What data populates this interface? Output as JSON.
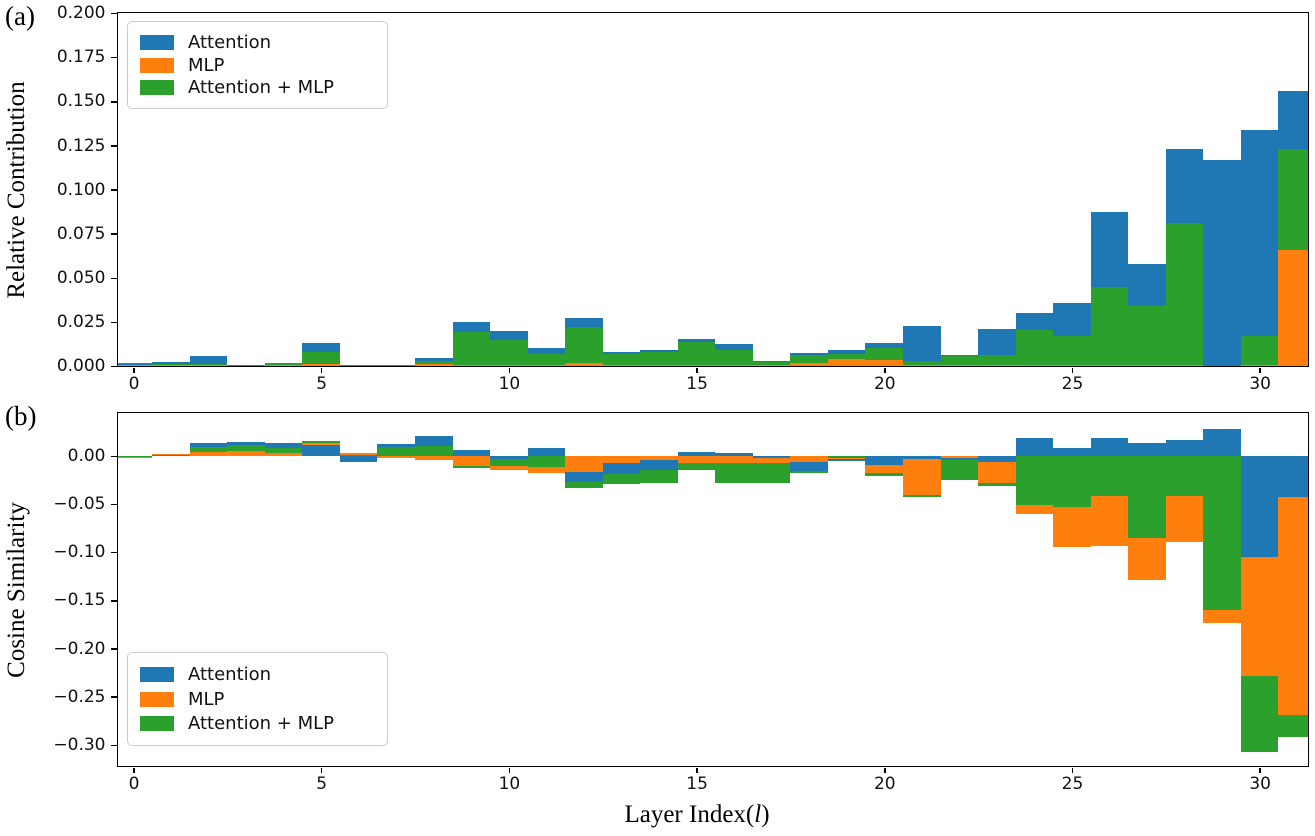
{
  "figure": {
    "panels": [
      {
        "tag": "(a)",
        "ylabel": "Relative Contribution"
      },
      {
        "tag": "(b)",
        "ylabel": "Cosine Similarity"
      }
    ],
    "xlabel": {
      "pre": "Layer Index(",
      "var": "l",
      "post": ")"
    }
  },
  "colors": {
    "attention": "#1f77b4",
    "mlp": "#ff7f0e",
    "attention_mlp": "#2ca02c",
    "spine": "#000000",
    "legend_border": "#cccccc"
  },
  "chart_data": [
    {
      "type": "bar",
      "overlay": "overlapping-bars-smallest-in-front",
      "panel": "(a)",
      "ylabel": "Relative Contribution",
      "x": [
        0,
        1,
        2,
        3,
        4,
        5,
        6,
        7,
        8,
        9,
        10,
        11,
        12,
        13,
        14,
        15,
        16,
        17,
        18,
        19,
        20,
        21,
        22,
        23,
        24,
        25,
        26,
        27,
        28,
        29,
        30,
        31
      ],
      "xticks": {
        "values": [
          0,
          5,
          10,
          15,
          20,
          25,
          30
        ],
        "labels": [
          "0",
          "5",
          "10",
          "15",
          "20",
          "25",
          "30"
        ]
      },
      "yticks": {
        "values": [
          0.0,
          0.025,
          0.05,
          0.075,
          0.1,
          0.125,
          0.15,
          0.175,
          0.2
        ],
        "labels": [
          "0.000",
          "0.025",
          "0.050",
          "0.075",
          "0.100",
          "0.125",
          "0.150",
          "0.175",
          "0.200"
        ]
      },
      "ylim": [
        0,
        0.2
      ],
      "legend": {
        "position": "upper left",
        "entries": [
          "Attention",
          "MLP",
          "Attention + MLP"
        ]
      },
      "series": [
        {
          "name": "Attention",
          "color": "#1f77b4",
          "values": [
            0.001,
            0.0025,
            0.0055,
            0.0005,
            0.002,
            0.013,
            0.0005,
            0.0005,
            0.0045,
            0.025,
            0.02,
            0.01,
            0.027,
            0.008,
            0.009,
            0.0155,
            0.0125,
            0.003,
            0.0075,
            0.009,
            0.013,
            0.0225,
            0.006,
            0.021,
            0.03,
            0.036,
            0.087,
            0.058,
            0.123,
            0.117,
            0.134,
            0.156
          ]
        },
        {
          "name": "MLP",
          "color": "#ff7f0e",
          "values": [
            0.0005,
            0.0005,
            0.0005,
            0.0003,
            0.0005,
            0.0012,
            0.0003,
            0.0003,
            0.001,
            0.0005,
            0.0005,
            0.0005,
            0.0018,
            0.0005,
            0.0005,
            0.0005,
            0.0005,
            0.0005,
            0.0015,
            0.004,
            0.0036,
            0.0005,
            0.0005,
            0.0005,
            0.0005,
            0.0005,
            0.0005,
            0.0005,
            0.0005,
            0.0003,
            0.0005,
            0.066
          ]
        },
        {
          "name": "Attention + MLP",
          "color": "#2ca02c",
          "values": [
            0.0015,
            0.001,
            0.001,
            0.0005,
            0.0015,
            0.008,
            0.0005,
            0.0005,
            0.003,
            0.0195,
            0.015,
            0.0066,
            0.022,
            0.0068,
            0.008,
            0.0135,
            0.009,
            0.0025,
            0.006,
            0.007,
            0.01,
            0.003,
            0.0055,
            0.006,
            0.0205,
            0.017,
            0.045,
            0.034,
            0.081,
            0.0003,
            0.017,
            0.123
          ]
        }
      ]
    },
    {
      "type": "bar",
      "overlay": "overlapping-bars-smallest-in-front",
      "panel": "(b)",
      "ylabel": "Cosine Similarity",
      "x": [
        0,
        1,
        2,
        3,
        4,
        5,
        6,
        7,
        8,
        9,
        10,
        11,
        12,
        13,
        14,
        15,
        16,
        17,
        18,
        19,
        20,
        21,
        22,
        23,
        24,
        25,
        26,
        27,
        28,
        29,
        30,
        31
      ],
      "xticks": {
        "values": [
          0,
          5,
          10,
          15,
          20,
          25,
          30
        ],
        "labels": [
          "0",
          "5",
          "10",
          "15",
          "20",
          "25",
          "30"
        ]
      },
      "yticks": {
        "values": [
          0.0,
          -0.05,
          -0.1,
          -0.15,
          -0.2,
          -0.25,
          -0.3
        ],
        "labels": [
          "0.00",
          "−0.05",
          "−0.10",
          "−0.15",
          "−0.20",
          "−0.25",
          "−0.30"
        ]
      },
      "ylim": [
        -0.322,
        0.0443
      ],
      "legend": {
        "position": "lower left",
        "entries": [
          "Attention",
          "MLP",
          "Attention + MLP"
        ]
      },
      "series": [
        {
          "name": "Attention",
          "color": "#1f77b4",
          "values": [
            -0.001,
            0.002,
            0.0135,
            0.0145,
            0.0135,
            0.0114,
            -0.0065,
            0.012,
            0.0204,
            0.0059,
            -0.0038,
            0.0076,
            -0.027,
            -0.019,
            -0.015,
            0.0038,
            0.003,
            -0.002,
            -0.0155,
            -0.006,
            -0.0097,
            -0.003,
            -0.004,
            -0.0065,
            0.018,
            0.0076,
            0.018,
            0.0128,
            0.0162,
            0.0273,
            -0.105,
            -0.0425
          ]
        },
        {
          "name": "MLP",
          "color": "#ff7f0e",
          "values": [
            -0.002,
            0.0015,
            0.0038,
            0.005,
            0.0024,
            0.0132,
            0.0024,
            -0.002,
            -0.0045,
            -0.0104,
            -0.0149,
            -0.0183,
            -0.0166,
            -0.008,
            -0.0045,
            -0.0073,
            -0.0073,
            -0.0076,
            -0.007,
            -0.0035,
            -0.0183,
            -0.0408,
            -0.002,
            -0.0287,
            -0.0609,
            -0.0944,
            -0.0937,
            -0.129,
            -0.09,
            -0.174,
            -0.229,
            -0.269
          ]
        },
        {
          "name": "Attention + MLP",
          "color": "#2ca02c",
          "values": [
            -0.001,
            0.001,
            0.0093,
            0.011,
            0.0076,
            0.0158,
            0.0012,
            0.009,
            0.01,
            -0.0125,
            -0.0107,
            -0.0114,
            -0.0339,
            -0.0295,
            -0.0287,
            -0.0149,
            -0.0287,
            -0.0283,
            -0.018,
            -0.002,
            -0.021,
            -0.0425,
            -0.0252,
            -0.0311,
            -0.0512,
            -0.0529,
            -0.0418,
            -0.0858,
            -0.0418,
            -0.16,
            -0.307,
            -0.2915
          ]
        }
      ]
    }
  ]
}
